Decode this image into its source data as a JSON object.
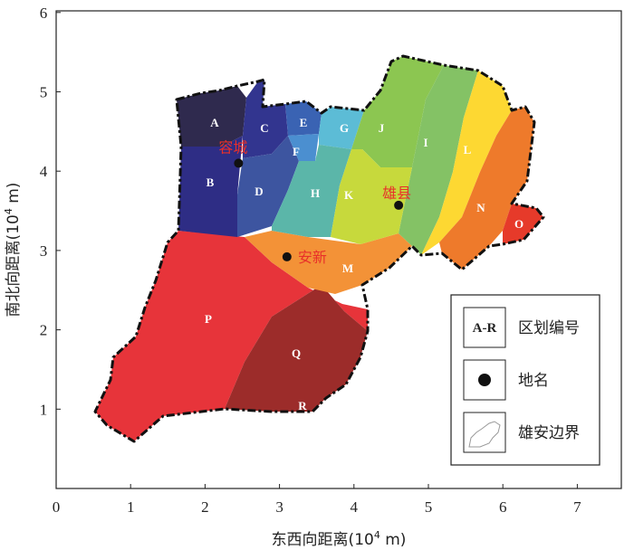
{
  "axes": {
    "xlabel_prefix": "东西向距离(10",
    "xlabel_exp": "4",
    "xlabel_suffix": " m)",
    "ylabel_prefix": "南北向距离(10",
    "ylabel_exp": "4",
    "ylabel_suffix": " m)",
    "x_ticks": [
      "0",
      "1",
      "2",
      "3",
      "4",
      "5",
      "6",
      "7"
    ],
    "y_ticks": [
      "1",
      "2",
      "3",
      "4",
      "5",
      "6"
    ],
    "xlim": [
      0,
      7.5
    ],
    "ylim": [
      0,
      6.1
    ]
  },
  "zones": [
    {
      "id": "A",
      "label": "A",
      "color": "#2f2a4e"
    },
    {
      "id": "B",
      "label": "B",
      "color": "#2e2d85"
    },
    {
      "id": "C",
      "label": "C",
      "color": "#32358f"
    },
    {
      "id": "D",
      "label": "D",
      "color": "#3d55a0"
    },
    {
      "id": "E",
      "label": "E",
      "color": "#3a63b3"
    },
    {
      "id": "F",
      "label": "F",
      "color": "#4b8fd0"
    },
    {
      "id": "G",
      "label": "G",
      "color": "#5cbcd6"
    },
    {
      "id": "H",
      "label": "H",
      "color": "#5bb6a9"
    },
    {
      "id": "J",
      "label": "J",
      "color": "#8cc651"
    },
    {
      "id": "I",
      "label": "I",
      "color": "#84c265"
    },
    {
      "id": "K",
      "label": "K",
      "color": "#c7d93c"
    },
    {
      "id": "L",
      "label": "L",
      "color": "#fdd832"
    },
    {
      "id": "N",
      "label": "N",
      "color": "#ee7a2b"
    },
    {
      "id": "O",
      "label": "O",
      "color": "#e63a2a"
    },
    {
      "id": "M",
      "label": "M",
      "color": "#f39237"
    },
    {
      "id": "P",
      "label": "P",
      "color": "#e7343a"
    },
    {
      "id": "Q",
      "label": "Q",
      "color": "#9c2c2a"
    },
    {
      "id": "R",
      "label": "R",
      "color": "#9c2c2a"
    }
  ],
  "places": [
    {
      "name": "容城",
      "x": 2.45,
      "y": 4.1
    },
    {
      "name": "雄县",
      "x": 4.6,
      "y": 3.57
    },
    {
      "name": "安新",
      "x": 3.1,
      "y": 2.92
    }
  ],
  "legend": {
    "zone_code": "A-R",
    "zone_text": "区划编号",
    "place_text": "地名",
    "boundary_text": "雄安边界"
  },
  "colors": {
    "boundary": "#111111",
    "place_marker": "#111111",
    "place_label": "#e8302a"
  }
}
